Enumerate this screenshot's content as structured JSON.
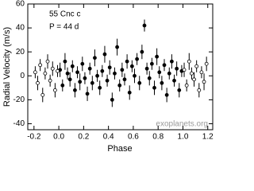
{
  "chart_data": {
    "type": "scatter",
    "xlabel": "Phase",
    "ylabel": "Radial Velocity  (m/s)",
    "annotations": [
      "55 Cnc c",
      "P = 44 d"
    ],
    "watermark": "exoplanets.org",
    "xlim": [
      -0.25,
      1.24
    ],
    "ylim": [
      -45,
      60
    ],
    "xticks": [
      -0.2,
      {
        "value": 0,
        "label": "0.0"
      },
      0.2,
      0.4,
      0.6,
      0.8,
      {
        "value": 1,
        "label": "1.0"
      },
      1.2
    ],
    "yticks": [
      -40,
      -20,
      0,
      20,
      40,
      60
    ],
    "series": [
      {
        "marker": "filled",
        "color": "#000000",
        "x": [
          0.01,
          0.03,
          0.05,
          0.07,
          0.09,
          0.11,
          0.13,
          0.15,
          0.17,
          0.19,
          0.21,
          0.23,
          0.25,
          0.27,
          0.29,
          0.31,
          0.33,
          0.35,
          0.37,
          0.39,
          0.41,
          0.43,
          0.45,
          0.47,
          0.49,
          0.51,
          0.53,
          0.55,
          0.57,
          0.59,
          0.61,
          0.63,
          0.65,
          0.67,
          0.69,
          0.71,
          0.73,
          0.75,
          0.77,
          0.79,
          0.81,
          0.83,
          0.85,
          0.87,
          0.89,
          0.91,
          0.93,
          0.95,
          0.97,
          0.99
        ],
        "values": [
          5,
          -8,
          12,
          2,
          -3,
          8,
          -12,
          3,
          -5,
          10,
          -2,
          -15,
          6,
          -6,
          15,
          0,
          -10,
          4,
          18,
          -4,
          7,
          -20,
          2,
          24,
          -8,
          5,
          -3,
          12,
          -14,
          8,
          0,
          14,
          -6,
          20,
          42,
          6,
          -2,
          10,
          -10,
          16,
          3,
          -6,
          9,
          -16,
          2,
          12,
          -4,
          6,
          -12,
          4
        ],
        "errors": [
          6,
          5,
          7,
          5,
          6,
          5,
          6,
          5,
          7,
          6,
          5,
          6,
          5,
          6,
          7,
          5,
          6,
          5,
          7,
          5,
          6,
          6,
          5,
          7,
          5,
          6,
          5,
          6,
          6,
          5,
          6,
          5,
          6,
          6,
          5,
          5,
          6,
          5,
          6,
          7,
          5,
          6,
          5,
          6,
          5,
          6,
          5,
          6,
          6,
          5
        ]
      },
      {
        "marker": "open",
        "color": "#000000",
        "x": [
          -0.19,
          -0.17,
          -0.15,
          -0.13,
          -0.11,
          -0.09,
          -0.07,
          -0.05,
          -0.03,
          -0.01,
          1.01,
          1.03,
          1.05,
          1.07,
          1.09,
          1.11,
          1.13,
          1.15,
          1.17,
          1.19
        ],
        "values": [
          3,
          -6,
          9,
          -16,
          2,
          12,
          -4,
          6,
          -12,
          4,
          5,
          -8,
          12,
          2,
          -3,
          8,
          -12,
          3,
          -5,
          10
        ],
        "errors": [
          5,
          6,
          5,
          6,
          5,
          6,
          5,
          6,
          6,
          5,
          6,
          5,
          7,
          5,
          6,
          5,
          6,
          5,
          7,
          6
        ]
      }
    ]
  }
}
